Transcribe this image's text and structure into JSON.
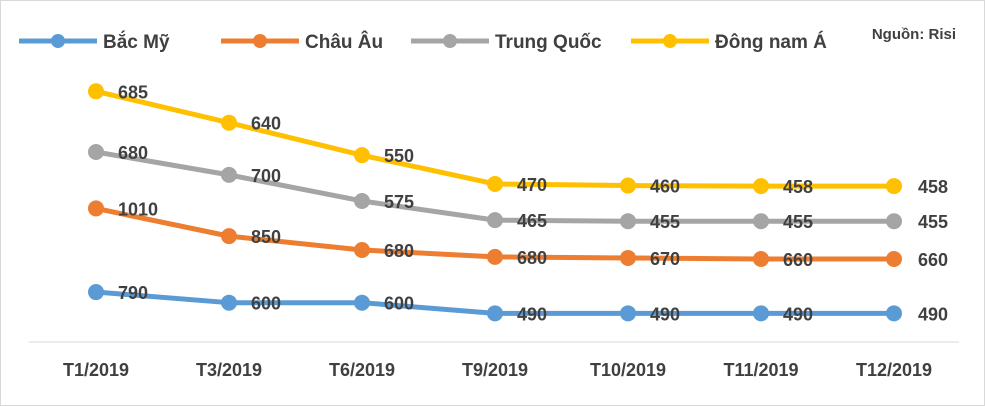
{
  "source_note": "Nguồn: Risi",
  "chart_data": {
    "type": "line",
    "title": "",
    "xlabel": "",
    "ylabel": "",
    "categories": [
      "T1/2019",
      "T3/2019",
      "T6/2019",
      "T9/2019",
      "T10/2019",
      "T11/2019",
      "T12/2019"
    ],
    "series": [
      {
        "name": "Bắc Mỹ",
        "color": "#5b9bd5",
        "values": [
          790,
          600,
          600,
          490,
          490,
          490,
          490
        ],
        "plot_level": [
          22.5,
          12.5,
          12.5,
          2.5,
          2.5,
          2.5,
          2.5
        ]
      },
      {
        "name": "Châu Âu",
        "color": "#ed7d31",
        "values": [
          1010,
          850,
          680,
          680,
          670,
          660,
          660
        ],
        "plot_level": [
          101,
          75,
          62,
          55.5,
          54.5,
          53.5,
          53.5
        ]
      },
      {
        "name": "Trung Quốc",
        "color": "#a5a5a5",
        "values": [
          680,
          700,
          575,
          465,
          455,
          455,
          455
        ],
        "plot_level": [
          154,
          132.5,
          108,
          90,
          89,
          89,
          89
        ]
      },
      {
        "name": "Đông nam Á",
        "color": "#ffc000",
        "values": [
          685,
          640,
          550,
          470,
          460,
          458,
          458
        ],
        "plot_level": [
          211,
          181.5,
          151,
          124,
          122.5,
          122,
          122
        ]
      }
    ],
    "legend_position": "top",
    "grid": false
  }
}
